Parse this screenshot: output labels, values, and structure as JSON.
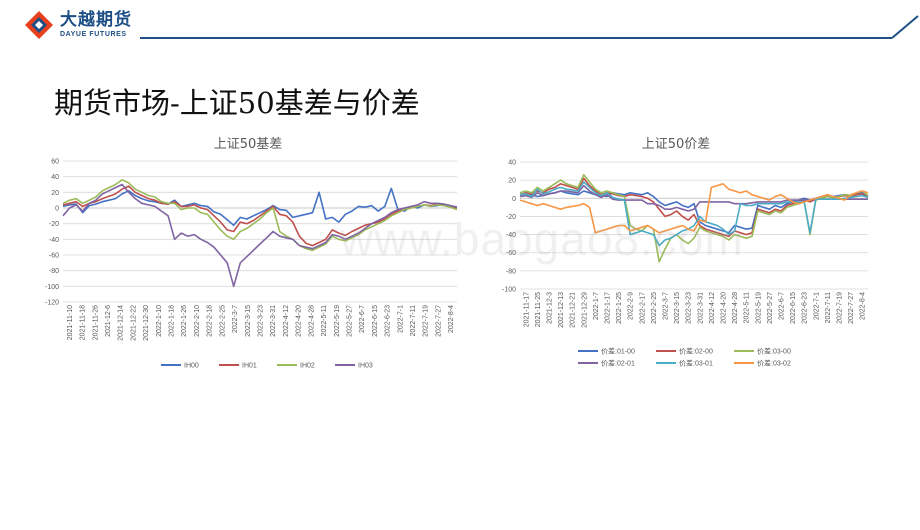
{
  "header": {
    "logo_cn": "大越期货",
    "logo_en": "DAYUE FUTURES",
    "brand_color": "#1d4f86",
    "accent_color": "#e8401c"
  },
  "page": {
    "title": "期货市场-上证50基差与价差"
  },
  "watermark": "www.baogao8.com",
  "chart_data": [
    {
      "type": "line",
      "title": "上证50基差",
      "ylim": [
        -120,
        60
      ],
      "yticks": [
        60,
        40,
        20,
        0,
        -20,
        -40,
        -60,
        -80,
        -100,
        -120
      ],
      "x_tick_labels": [
        "2021-11-10",
        "2021-11-18",
        "2021-11-26",
        "2021-12-6",
        "2021-12-14",
        "2021-12-22",
        "2021-12-30",
        "2022-1-10",
        "2022-1-18",
        "2022-1-26",
        "2022-2-10",
        "2022-2-18",
        "2022-2-25",
        "2022-3-7",
        "2022-3-15",
        "2022-3-23",
        "2022-3-31",
        "2022-4-12",
        "2022-4-20",
        "2022-4-28",
        "2022-5-11",
        "2022-5-19",
        "2022-5-27",
        "2022-6-7",
        "2022-6-15",
        "2022-6-23",
        "2022-7-1",
        "2022-7-11",
        "2022-7-19",
        "2022-7-27",
        "2022-8-4"
      ],
      "grid": true,
      "legend_position": "bottom",
      "series": [
        {
          "name": "IH00",
          "color": "#4472c4",
          "values": [
            2,
            4,
            5,
            -6,
            3,
            5,
            8,
            10,
            12,
            18,
            22,
            16,
            12,
            9,
            8,
            6,
            5,
            10,
            2,
            4,
            6,
            3,
            2,
            -5,
            -8,
            -15,
            -22,
            -12,
            -14,
            -10,
            -6,
            -2,
            3,
            -2,
            -3,
            -12,
            -10,
            -8,
            -6,
            20,
            -14,
            -12,
            -18,
            -8,
            -4,
            2,
            1,
            3,
            -4,
            2,
            25,
            -2,
            -4,
            2,
            0,
            4,
            2,
            3,
            5,
            3,
            1
          ]
        },
        {
          "name": "IH01",
          "color": "#c0504d",
          "values": [
            4,
            6,
            8,
            2,
            6,
            8,
            12,
            15,
            18,
            24,
            28,
            20,
            16,
            12,
            10,
            6,
            5,
            8,
            2,
            2,
            4,
            0,
            -2,
            -10,
            -18,
            -28,
            -30,
            -18,
            -20,
            -16,
            -10,
            -4,
            2,
            -8,
            -10,
            -18,
            -36,
            -45,
            -48,
            -44,
            -40,
            -28,
            -32,
            -35,
            -30,
            -26,
            -22,
            -20,
            -18,
            -14,
            -8,
            -4,
            -2,
            0,
            2,
            4,
            3,
            5,
            4,
            2,
            0
          ]
        },
        {
          "name": "IH02",
          "color": "#9bbb59",
          "values": [
            6,
            10,
            12,
            6,
            10,
            14,
            22,
            26,
            30,
            36,
            32,
            24,
            20,
            16,
            14,
            8,
            6,
            6,
            -2,
            0,
            0,
            -6,
            -8,
            -18,
            -28,
            -36,
            -40,
            -30,
            -26,
            -20,
            -14,
            -6,
            0,
            -30,
            -36,
            -40,
            -48,
            -52,
            -54,
            -50,
            -46,
            -36,
            -40,
            -42,
            -38,
            -34,
            -28,
            -24,
            -20,
            -16,
            -10,
            -6,
            -2,
            0,
            2,
            4,
            2,
            4,
            3,
            1,
            -2
          ]
        },
        {
          "name": "IH03",
          "color": "#8064a2",
          "values": [
            -10,
            0,
            4,
            -4,
            6,
            10,
            18,
            22,
            26,
            30,
            20,
            12,
            6,
            4,
            2,
            -4,
            -10,
            -40,
            -32,
            -36,
            -34,
            -40,
            -44,
            -50,
            -60,
            -70,
            -100,
            -70,
            -62,
            -54,
            -46,
            -38,
            -30,
            -36,
            -38,
            -40,
            -48,
            -50,
            -52,
            -48,
            -44,
            -34,
            -36,
            -40,
            -36,
            -32,
            -26,
            -20,
            -16,
            -12,
            -6,
            -2,
            0,
            2,
            4,
            8,
            6,
            6,
            5,
            3,
            1
          ]
        }
      ]
    },
    {
      "type": "line",
      "title": "上证50价差",
      "ylim": [
        -100,
        40
      ],
      "yticks": [
        40,
        20,
        0,
        -20,
        -40,
        -60,
        -80,
        -100
      ],
      "x_tick_labels": [
        "2021-11-17",
        "2021-11-25",
        "2021-12-3",
        "2021-12-13",
        "2021-12-21",
        "2021-12-29",
        "2022-1-7",
        "2022-1-17",
        "2022-1-25",
        "2022-2-9",
        "2022-2-17",
        "2022-2-25",
        "2022-3-7",
        "2022-3-15",
        "2022-3-23",
        "2022-3-31",
        "2022-4-12",
        "2022-4-20",
        "2022-4-28",
        "2022-5-11",
        "2022-5-19",
        "2022-5-27",
        "2022-6-7",
        "2022-6-15",
        "2022-6-23",
        "2022-7-1",
        "2022-7-11",
        "2022-7-19",
        "2022-7-27",
        "2022-8-4"
      ],
      "grid": true,
      "legend_position": "bottom",
      "series": [
        {
          "name": "价差:01-00",
          "color": "#4472c4",
          "values": [
            2,
            3,
            4,
            2,
            3,
            5,
            6,
            8,
            6,
            5,
            4,
            8,
            6,
            4,
            3,
            2,
            6,
            5,
            4,
            6,
            5,
            4,
            6,
            2,
            -4,
            -8,
            -6,
            -4,
            -8,
            -10,
            -6,
            -26,
            -30,
            -32,
            -34,
            -36,
            -38,
            -30,
            -32,
            -34,
            -33,
            -8,
            -10,
            -12,
            -8,
            -10,
            -6,
            -4,
            -2,
            0,
            -2,
            0,
            2,
            3,
            2,
            3,
            4,
            3,
            5,
            6,
            2
          ]
        },
        {
          "name": "价差:02-00",
          "color": "#c0504d",
          "values": [
            4,
            6,
            5,
            8,
            6,
            10,
            12,
            16,
            14,
            12,
            10,
            22,
            14,
            8,
            4,
            6,
            5,
            3,
            2,
            4,
            3,
            2,
            0,
            -4,
            -12,
            -20,
            -18,
            -14,
            -20,
            -24,
            -18,
            -30,
            -34,
            -36,
            -38,
            -40,
            -42,
            -36,
            -38,
            -40,
            -38,
            -12,
            -14,
            -16,
            -12,
            -14,
            -8,
            -6,
            -4,
            -2,
            -4,
            -1,
            1,
            2,
            1,
            2,
            3,
            2,
            4,
            5,
            1
          ]
        },
        {
          "name": "价差:03-00",
          "color": "#9bbb59",
          "values": [
            6,
            8,
            6,
            12,
            8,
            12,
            16,
            20,
            16,
            14,
            12,
            26,
            18,
            10,
            6,
            8,
            6,
            4,
            2,
            -30,
            -34,
            -36,
            -30,
            -34,
            -70,
            -56,
            -44,
            -40,
            -46,
            -50,
            -44,
            -32,
            -36,
            -38,
            -40,
            -42,
            -46,
            -40,
            -42,
            -44,
            -42,
            -14,
            -16,
            -18,
            -14,
            -16,
            -10,
            -8,
            -6,
            -4,
            -40,
            -2,
            0,
            2,
            1,
            2,
            4,
            3,
            6,
            8,
            3
          ]
        },
        {
          "name": "价差:02-01",
          "color": "#8064a2",
          "values": [
            2,
            3,
            1,
            6,
            3,
            5,
            6,
            8,
            8,
            7,
            6,
            14,
            8,
            4,
            1,
            4,
            -1,
            -2,
            -2,
            -2,
            -2,
            -2,
            -6,
            -6,
            -8,
            -12,
            -12,
            -10,
            -12,
            -14,
            -12,
            -4,
            -4,
            -4,
            -4,
            -4,
            -4,
            -6,
            -6,
            -6,
            -5,
            -4,
            -4,
            -4,
            -4,
            -4,
            -2,
            -2,
            -2,
            -2,
            -2,
            -1,
            -1,
            -1,
            -1,
            -1,
            -1,
            -1,
            -1,
            -1,
            -1
          ]
        },
        {
          "name": "价差:03-01",
          "color": "#4bacc6",
          "values": [
            4,
            5,
            2,
            10,
            5,
            7,
            10,
            12,
            10,
            9,
            8,
            18,
            12,
            6,
            3,
            6,
            1,
            -1,
            -2,
            -40,
            -38,
            -36,
            -38,
            -40,
            -52,
            -46,
            -44,
            -40,
            -36,
            -34,
            -30,
            -20,
            -26,
            -28,
            -30,
            -34,
            -40,
            -36,
            -6,
            -8,
            -8,
            -6,
            -6,
            -6,
            -6,
            -6,
            -4,
            -4,
            -4,
            -4,
            -38,
            -1,
            -1,
            -1,
            -1,
            -1,
            0,
            1,
            2,
            3,
            1
          ]
        },
        {
          "name": "价差:03-02",
          "color": "#f79646",
          "values": [
            -2,
            -4,
            -6,
            -8,
            -6,
            -8,
            -10,
            -12,
            -10,
            -9,
            -8,
            -6,
            -10,
            -38,
            -36,
            -34,
            -32,
            -30,
            -30,
            -36,
            -34,
            -32,
            -30,
            -34,
            -38,
            -36,
            -34,
            -32,
            -30,
            -34,
            -36,
            -24,
            -26,
            12,
            14,
            16,
            10,
            8,
            6,
            8,
            4,
            2,
            0,
            -2,
            2,
            4,
            0,
            -4,
            -6,
            -4,
            -2,
            0,
            2,
            4,
            2,
            0,
            -2,
            4,
            6,
            8,
            6
          ]
        }
      ]
    }
  ]
}
